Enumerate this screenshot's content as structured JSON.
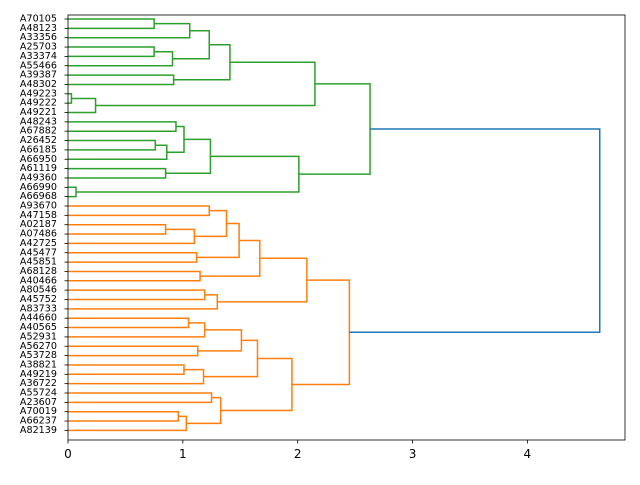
{
  "chart_data": {
    "type": "dendrogram",
    "orientation": "horizontal",
    "title": "",
    "xlabel": "",
    "ylabel": "",
    "xlim": [
      0,
      4.85
    ],
    "xticks": [
      0,
      1,
      2,
      3,
      4
    ],
    "xtick_labels": [
      "0",
      "1",
      "2",
      "3",
      "4"
    ],
    "grid": false,
    "legend": "none",
    "colors": {
      "cluster_a": "#2ca02c",
      "cluster_b": "#ff7f0e",
      "root": "#1f77b4",
      "axis": "#000000"
    },
    "leaves": [
      "A70105",
      "A48123",
      "A33356",
      "A25703",
      "A33374",
      "A55466",
      "A39387",
      "A48302",
      "A49223",
      "A49222",
      "A49221",
      "A48243",
      "A67882",
      "A26452",
      "A66185",
      "A66950",
      "A61119",
      "A49360",
      "A66990",
      "A66968",
      "A93670",
      "A47158",
      "A02187",
      "A07486",
      "A42725",
      "A45477",
      "A45851",
      "A68128",
      "A40466",
      "A80546",
      "A45752",
      "A83733",
      "A44660",
      "A40565",
      "A52931",
      "A56270",
      "A53728",
      "A38821",
      "A49219",
      "A36722",
      "A55724",
      "A23607",
      "A70019",
      "A66237",
      "A82139"
    ],
    "merges": [
      {
        "left": "A70105",
        "right": "A48123",
        "height": 0.75,
        "color": "cluster_a"
      },
      {
        "left": "m0",
        "right": "A33356",
        "height": 1.06,
        "color": "cluster_a"
      },
      {
        "left": "A25703",
        "right": "A33374",
        "height": 0.75,
        "color": "cluster_a"
      },
      {
        "left": "m2",
        "right": "A55466",
        "height": 0.91,
        "color": "cluster_a"
      },
      {
        "left": "m1",
        "right": "m3",
        "height": 1.23,
        "color": "cluster_a"
      },
      {
        "left": "A39387",
        "right": "A48302",
        "height": 0.92,
        "color": "cluster_a"
      },
      {
        "left": "m4",
        "right": "m5",
        "height": 1.41,
        "color": "cluster_a"
      },
      {
        "left": "A49223",
        "right": "A49222",
        "height": 0.03,
        "color": "cluster_a"
      },
      {
        "left": "m7",
        "right": "A49221",
        "height": 0.24,
        "color": "cluster_a"
      },
      {
        "left": "m6",
        "right": "m8",
        "height": 2.15,
        "color": "cluster_a"
      },
      {
        "left": "A48243",
        "right": "A67882",
        "height": 0.94,
        "color": "cluster_a"
      },
      {
        "left": "A26452",
        "right": "A66185",
        "height": 0.76,
        "color": "cluster_a"
      },
      {
        "left": "m11",
        "right": "A66950",
        "height": 0.86,
        "color": "cluster_a"
      },
      {
        "left": "m10",
        "right": "m12",
        "height": 1.01,
        "color": "cluster_a"
      },
      {
        "left": "A61119",
        "right": "A49360",
        "height": 0.85,
        "color": "cluster_a"
      },
      {
        "left": "m13",
        "right": "m14",
        "height": 1.24,
        "color": "cluster_a"
      },
      {
        "left": "A66990",
        "right": "A66968",
        "height": 0.07,
        "color": "cluster_a"
      },
      {
        "left": "m15",
        "right": "m16",
        "height": 2.01,
        "color": "cluster_a"
      },
      {
        "left": "m9",
        "right": "m17",
        "height": 2.63,
        "color": "cluster_a"
      },
      {
        "left": "A93670",
        "right": "A47158",
        "height": 1.23,
        "color": "cluster_b"
      },
      {
        "left": "A02187",
        "right": "A07486",
        "height": 0.85,
        "color": "cluster_b"
      },
      {
        "left": "m20",
        "right": "A42725",
        "height": 1.1,
        "color": "cluster_b"
      },
      {
        "left": "m19",
        "right": "m21",
        "height": 1.38,
        "color": "cluster_b"
      },
      {
        "left": "A45477",
        "right": "A45851",
        "height": 1.12,
        "color": "cluster_b"
      },
      {
        "left": "m22",
        "right": "m23",
        "height": 1.49,
        "color": "cluster_b"
      },
      {
        "left": "A68128",
        "right": "A40466",
        "height": 1.15,
        "color": "cluster_b"
      },
      {
        "left": "m24",
        "right": "m25",
        "height": 1.67,
        "color": "cluster_b"
      },
      {
        "left": "A80546",
        "right": "A45752",
        "height": 1.19,
        "color": "cluster_b"
      },
      {
        "left": "m27",
        "right": "A83733",
        "height": 1.3,
        "color": "cluster_b"
      },
      {
        "left": "m26",
        "right": "m28",
        "height": 2.08,
        "color": "cluster_b"
      },
      {
        "left": "A44660",
        "right": "A40565",
        "height": 1.05,
        "color": "cluster_b"
      },
      {
        "left": "m30",
        "right": "A52931",
        "height": 1.19,
        "color": "cluster_b"
      },
      {
        "left": "A56270",
        "right": "A53728",
        "height": 1.13,
        "color": "cluster_b"
      },
      {
        "left": "m31",
        "right": "m32",
        "height": 1.51,
        "color": "cluster_b"
      },
      {
        "left": "A38821",
        "right": "A49219",
        "height": 1.01,
        "color": "cluster_b"
      },
      {
        "left": "m34",
        "right": "A36722",
        "height": 1.18,
        "color": "cluster_b"
      },
      {
        "left": "m33",
        "right": "m35",
        "height": 1.65,
        "color": "cluster_b"
      },
      {
        "left": "A55724",
        "right": "A23607",
        "height": 1.25,
        "color": "cluster_b"
      },
      {
        "left": "A70019",
        "right": "A66237",
        "height": 0.96,
        "color": "cluster_b"
      },
      {
        "left": "m38",
        "right": "A82139",
        "height": 1.03,
        "color": "cluster_b"
      },
      {
        "left": "m37",
        "right": "m39",
        "height": 1.33,
        "color": "cluster_b"
      },
      {
        "left": "m36",
        "right": "m40",
        "height": 1.95,
        "color": "cluster_b"
      },
      {
        "left": "m29",
        "right": "m41",
        "height": 2.45,
        "color": "cluster_b"
      },
      {
        "left": "m18",
        "right": "m42",
        "height": 4.63,
        "color": "root"
      }
    ]
  }
}
